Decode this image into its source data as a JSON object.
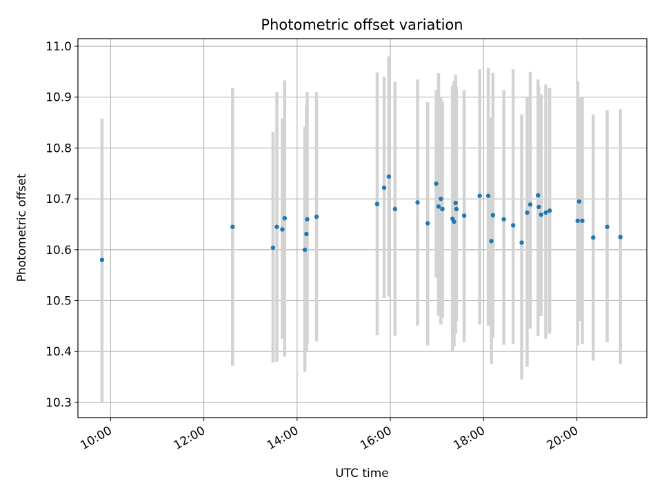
{
  "chart_data": {
    "type": "scatter",
    "title": "Photometric offset variation",
    "xlabel": "UTC time",
    "ylabel": "Photometric offset",
    "grid": true,
    "xlim": [
      "09:18",
      "21:30"
    ],
    "ylim": [
      10.27,
      11.015
    ],
    "x_ticks": [
      "10:00",
      "12:00",
      "14:00",
      "16:00",
      "18:00",
      "20:00"
    ],
    "y_ticks": [
      10.3,
      10.4,
      10.5,
      10.6,
      10.7,
      10.8,
      10.9,
      11.0
    ],
    "y_tick_labels": [
      "10.3",
      "10.4",
      "10.5",
      "10.6",
      "10.7",
      "10.8",
      "10.9",
      "11.0"
    ],
    "colors": {
      "marker": "#1f77b4",
      "errorbar": "#d3d3d3",
      "grid": "#b0b0b0"
    },
    "series": [
      {
        "x": [
          "09:49",
          "12:37",
          "13:29",
          "13:34",
          "13:41",
          "13:44",
          "14:10",
          "14:12",
          "14:13",
          "14:25",
          "15:43",
          "15:52",
          "15:58",
          "16:06",
          "16:35",
          "16:48",
          "16:59",
          "17:02",
          "17:05",
          "17:07",
          "17:20",
          "17:22",
          "17:24",
          "17:25",
          "17:35",
          "17:55",
          "18:06",
          "18:10",
          "18:12",
          "18:26",
          "18:38",
          "18:49",
          "18:56",
          "19:00",
          "19:10",
          "19:11",
          "19:14",
          "19:20",
          "19:25",
          "20:01",
          "20:03",
          "20:07",
          "20:21",
          "20:39",
          "20:56"
        ],
        "y": [
          10.58,
          10.645,
          10.604,
          10.645,
          10.64,
          10.662,
          10.6,
          10.631,
          10.66,
          10.665,
          10.69,
          10.722,
          10.744,
          10.68,
          10.693,
          10.652,
          10.73,
          10.685,
          10.7,
          10.68,
          10.661,
          10.655,
          10.692,
          10.68,
          10.667,
          10.706,
          10.706,
          10.617,
          10.668,
          10.66,
          10.648,
          10.614,
          10.673,
          10.689,
          10.707,
          10.684,
          10.669,
          10.673,
          10.677,
          10.657,
          10.695,
          10.657,
          10.624,
          10.645,
          10.625
        ],
        "y_low": [
          10.3,
          10.372,
          10.378,
          10.38,
          10.425,
          10.39,
          10.36,
          10.4,
          10.415,
          10.42,
          10.432,
          10.505,
          10.508,
          10.431,
          10.451,
          10.412,
          10.545,
          10.47,
          10.453,
          10.466,
          10.4,
          10.41,
          10.435,
          10.46,
          10.418,
          10.453,
          10.451,
          10.376,
          10.427,
          10.413,
          10.415,
          10.345,
          10.37,
          10.445,
          10.43,
          10.475,
          10.47,
          10.425,
          10.435,
          10.412,
          10.46,
          10.415,
          10.382,
          10.418,
          10.375
        ],
        "y_high": [
          10.858,
          10.918,
          10.832,
          10.91,
          10.858,
          10.933,
          10.842,
          10.882,
          10.91,
          10.91,
          10.949,
          10.94,
          10.98,
          10.93,
          10.935,
          10.89,
          10.914,
          10.947,
          10.9,
          10.892,
          10.922,
          10.932,
          10.944,
          10.92,
          10.914,
          10.955,
          10.958,
          10.86,
          10.948,
          10.914,
          10.955,
          10.866,
          10.9,
          10.95,
          10.935,
          10.92,
          10.905,
          10.925,
          10.918,
          10.932,
          10.9,
          10.9,
          10.866,
          10.874,
          10.876
        ]
      }
    ]
  }
}
